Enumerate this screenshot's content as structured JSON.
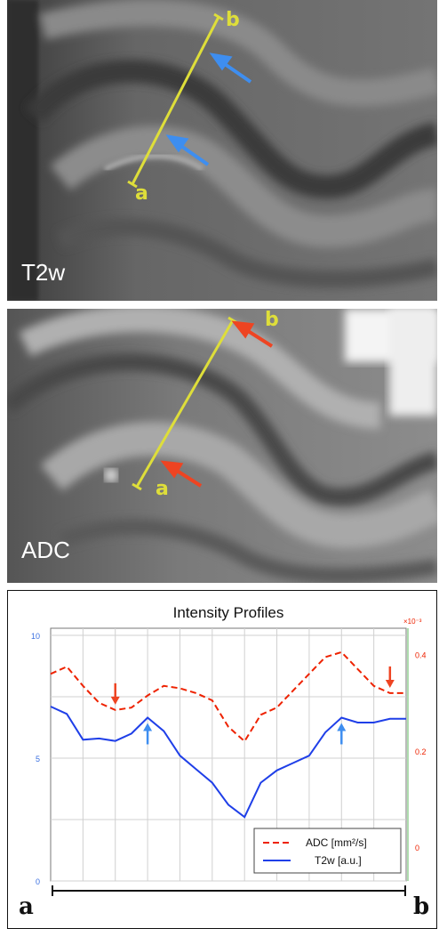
{
  "panels": {
    "t2w": {
      "label": "T2w",
      "end_a": "a",
      "end_b": "b"
    },
    "adc": {
      "label": "ADC",
      "end_a": "a",
      "end_b": "b"
    }
  },
  "colors": {
    "probe_line": "#dede3a",
    "t2w_arrow": "#3e8ef0",
    "adc_arrow": "#ee4422",
    "adc_series": "#ee2200",
    "t2w_series": "#1f3fe8"
  },
  "chart_data": {
    "type": "line",
    "title": "Intensity Profiles",
    "x_ends": [
      "a",
      "b"
    ],
    "x": [
      0,
      1,
      2,
      3,
      4,
      5,
      6,
      7,
      8,
      9,
      10,
      11,
      12,
      13,
      14,
      15,
      16,
      17,
      18,
      19,
      20,
      21,
      22
    ],
    "y_left": {
      "ticks": [
        "10",
        "5",
        "0"
      ],
      "ylim": [
        0,
        10
      ]
    },
    "y_right": {
      "ticks": [
        "0.4",
        "0.2",
        "0"
      ],
      "ylim": [
        -0.07,
        0.44
      ],
      "multiplier": "×10⁻³"
    },
    "series": [
      {
        "name": "ADC [mm²/s]",
        "axis": "right",
        "style": "dashed",
        "values": [
          0.36,
          0.375,
          0.335,
          0.3,
          0.285,
          0.29,
          0.315,
          0.335,
          0.33,
          0.32,
          0.305,
          0.25,
          0.22,
          0.275,
          0.29,
          0.325,
          0.36,
          0.395,
          0.405,
          0.37,
          0.335,
          0.32,
          0.32
        ]
      },
      {
        "name": "T2w [a.u.]",
        "axis": "left",
        "style": "solid",
        "values": [
          7.1,
          6.8,
          5.75,
          5.8,
          5.7,
          6.0,
          6.65,
          6.1,
          5.1,
          4.55,
          4.0,
          3.1,
          2.6,
          4.0,
          4.5,
          4.8,
          5.1,
          6.05,
          6.65,
          6.45,
          6.45,
          6.6,
          6.6
        ]
      }
    ],
    "annotations": [
      {
        "kind": "down-arrow",
        "series": "ADC [mm²/s]",
        "x": 4
      },
      {
        "kind": "down-arrow",
        "series": "ADC [mm²/s]",
        "x": 21
      },
      {
        "kind": "up-arrow",
        "series": "T2w [a.u.]",
        "x": 6
      },
      {
        "kind": "up-arrow",
        "series": "T2w [a.u.]",
        "x": 18
      }
    ],
    "grid": true,
    "legend_position": "bottom-right"
  }
}
